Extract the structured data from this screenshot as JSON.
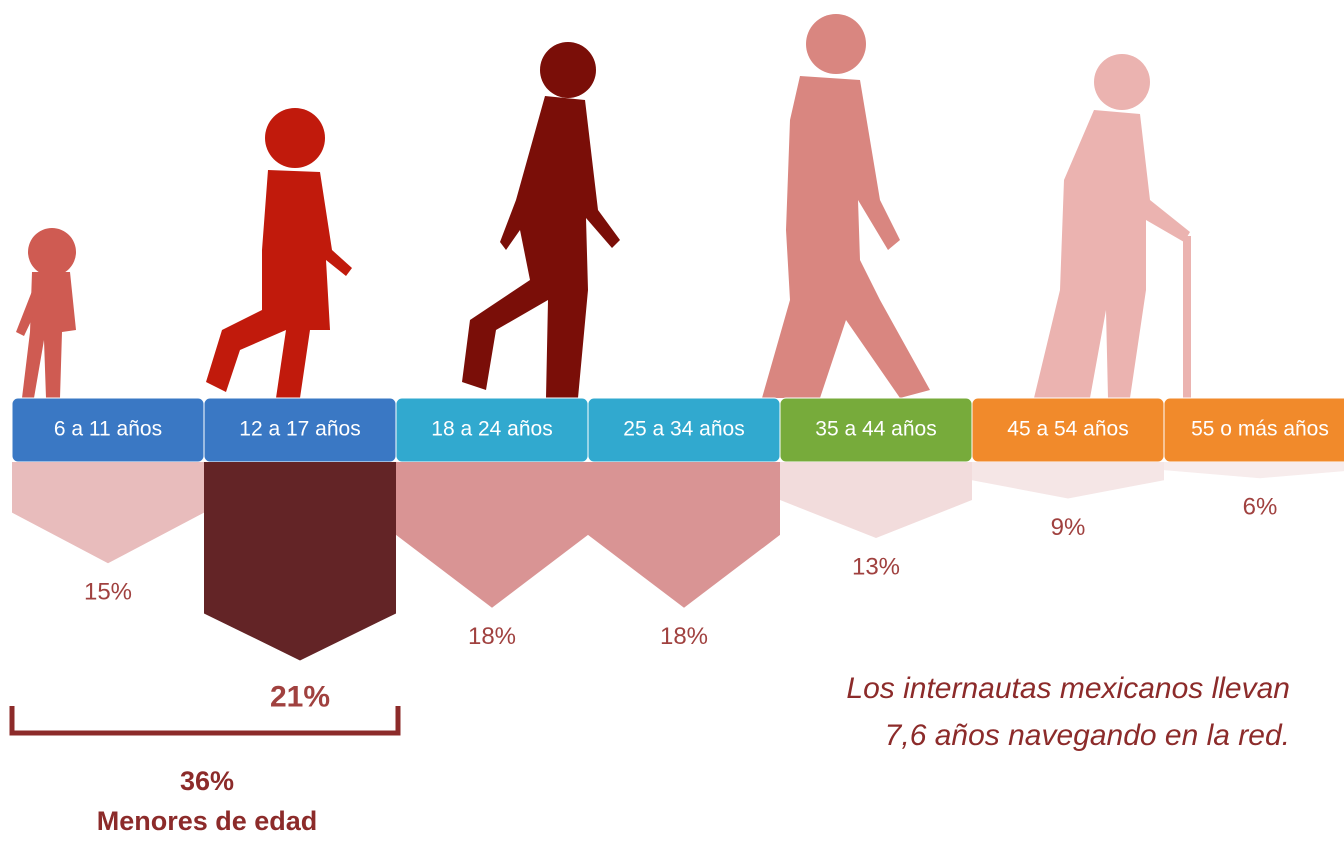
{
  "chart_data": {
    "type": "bar",
    "categories": [
      "6 a 11 años",
      "12 a 17 años",
      "18 a 24 años",
      "25 a 34 años",
      "35 a 44 años",
      "45 a 54 años",
      "55 o más años"
    ],
    "values": [
      15,
      21,
      18,
      18,
      13,
      9,
      6
    ],
    "value_labels": [
      "15%",
      "21%",
      "18%",
      "18%",
      "13%",
      "9%",
      "6%"
    ],
    "header_colors": [
      "#3a78c4",
      "#3a78c4",
      "#31a9cf",
      "#31a9cf",
      "#77ab3b",
      "#f18a2b",
      "#f18a2b"
    ],
    "colors": [
      "#e8bcbc",
      "#632426",
      "#d99494",
      "#d99494",
      "#f2dcdc",
      "#f5e6e6",
      "#f7ecec"
    ],
    "bracket_value": "36%",
    "bracket_label": "Menores de edad",
    "note_lines": [
      "Los internautas mexicanos llevan",
      "7,6 años navegando en la red."
    ]
  }
}
